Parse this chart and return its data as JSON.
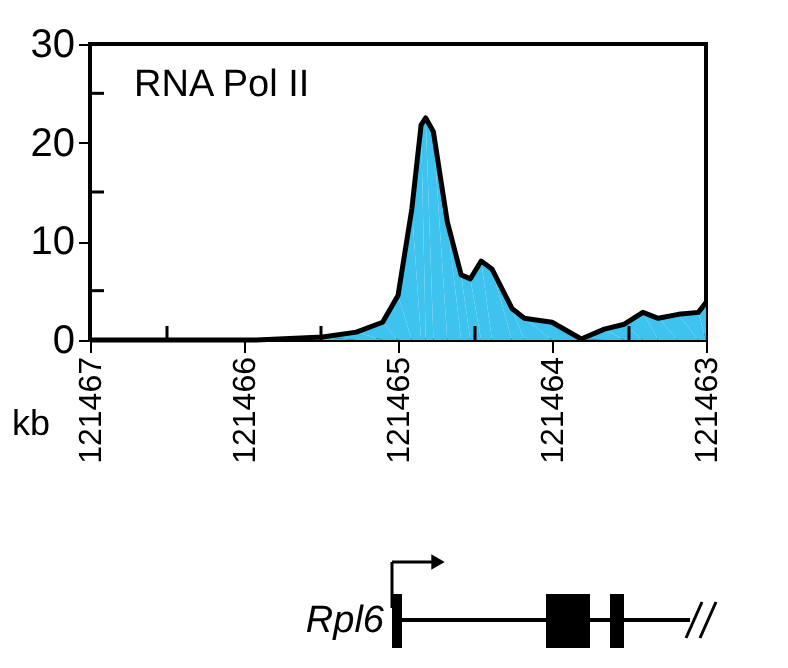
{
  "chart_data": {
    "type": "area",
    "xlabel": "kb",
    "annotations": [
      "RNA Pol II",
      "Rpl6"
    ],
    "x": [
      121467,
      121465.92,
      121465.49,
      121465.27,
      121465.1,
      121465.0,
      121464.91,
      121464.85,
      121464.82,
      121464.77,
      121464.68,
      121464.59,
      121464.53,
      121464.46,
      121464.39,
      121464.26,
      121464.18,
      121464.0,
      121463.81,
      121463.66,
      121463.53,
      121463.41,
      121463.31,
      121463.18,
      121463.05,
      121463.0
    ],
    "series": [
      {
        "color": "#3ec3ef",
        "values": [
          0,
          0,
          0.3,
          0.8,
          1.8,
          4.5,
          13.3,
          21.8,
          22.5,
          21.1,
          12,
          6.6,
          6.2,
          8.0,
          7.2,
          3.2,
          2.2,
          1.8,
          0.1,
          1.1,
          1.6,
          2.8,
          2.2,
          2.6,
          2.8,
          3.8
        ]
      }
    ],
    "xlim": [
      121467,
      121463
    ],
    "xticks": [
      121467,
      {
        "value": 121466.5,
        "label": null
      },
      121466,
      {
        "value": 121465.5,
        "label": null
      },
      121465,
      {
        "value": 121464.5,
        "label": null
      },
      121464,
      {
        "value": 121463.5,
        "label": null
      },
      121463
    ],
    "ylim": [
      0,
      30
    ],
    "yticks": [
      0,
      {
        "value": 5,
        "label": null
      },
      10,
      {
        "value": 15,
        "label": null
      },
      20,
      {
        "value": 25,
        "label": null
      },
      30
    ],
    "grid": false
  }
}
